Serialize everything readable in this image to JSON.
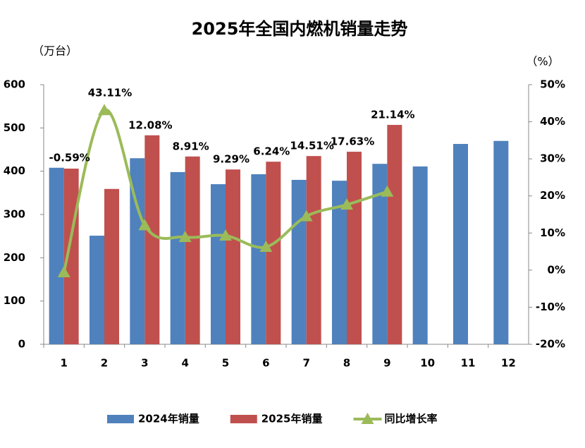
{
  "chart_data": {
    "type": "bar-line",
    "title": "2025年全国内燃机销量走势",
    "y_label": "（万台）",
    "y2_label": "（%）",
    "categories": [
      "1",
      "2",
      "3",
      "4",
      "5",
      "6",
      "7",
      "8",
      "9",
      "10",
      "11",
      "12"
    ],
    "series": [
      {
        "name": "2024年销量",
        "color": "#4f81bd",
        "type": "bar",
        "values": [
          408,
          251,
          430,
          398,
          370,
          393,
          380,
          378,
          417,
          411,
          463,
          470
        ]
      },
      {
        "name": "2025年销量",
        "color": "#c0504d",
        "type": "bar",
        "values": [
          406,
          359,
          483,
          434,
          404,
          422,
          435,
          445,
          507,
          null,
          null,
          null
        ]
      },
      {
        "name": "同比增长率",
        "color": "#9bbb59",
        "type": "line",
        "axis": "y2",
        "values": [
          -0.59,
          43.11,
          12.08,
          8.91,
          9.29,
          6.24,
          14.51,
          17.63,
          21.14,
          null,
          null,
          null
        ],
        "value_labels": [
          "-0.59%",
          "43.11%",
          "12.08%",
          "8.91%",
          "9.29%",
          "6.24%",
          "14.51%",
          "17.63%",
          "21.14%",
          null,
          null,
          null
        ]
      }
    ],
    "ylim": [
      0,
      600
    ],
    "yticks": [
      0,
      100,
      200,
      300,
      400,
      500,
      600
    ],
    "y2lim": [
      -20,
      50
    ],
    "y2ticks": [
      {
        "value": -20,
        "label": "-20%"
      },
      {
        "value": -10,
        "label": "-10%"
      },
      {
        "value": 0,
        "label": "0%"
      },
      {
        "value": 10,
        "label": "10%"
      },
      {
        "value": 20,
        "label": "20%"
      },
      {
        "value": 30,
        "label": "30%"
      },
      {
        "value": 40,
        "label": "40%"
      },
      {
        "value": 50,
        "label": "50%"
      }
    ],
    "legend": "bottom"
  }
}
